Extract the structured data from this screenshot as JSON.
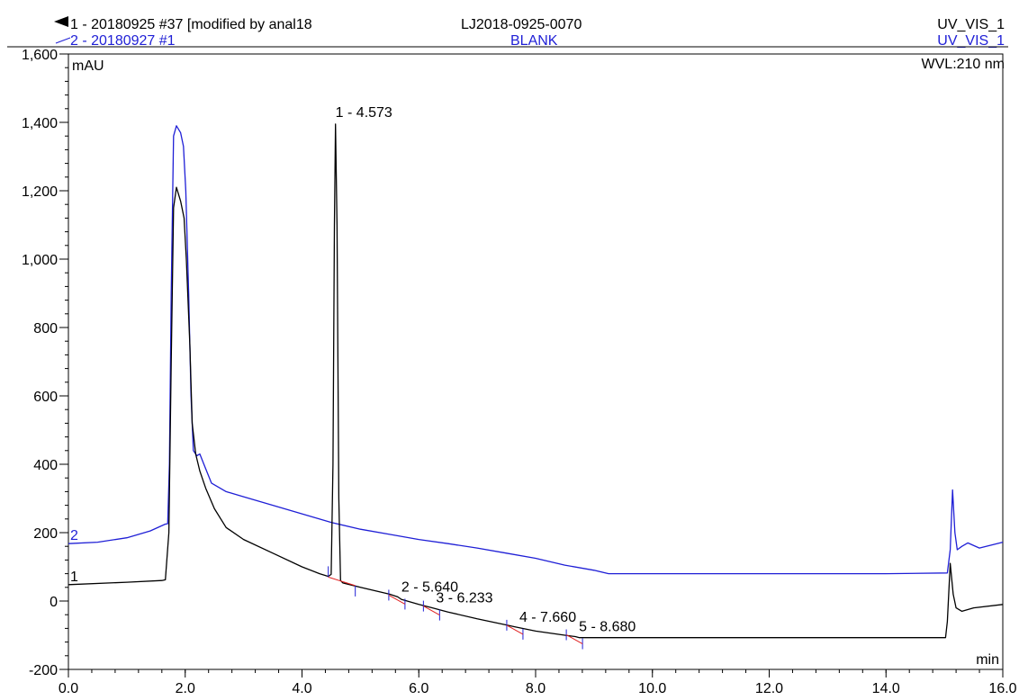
{
  "header": {
    "trace1_label": "1 - 20180925 #37 [modified by anal18",
    "trace2_label": "2 - 20180927 #1",
    "sample_name": "LJ2018-0925-0070",
    "blank_name": "BLANK",
    "channel1": "UV_VIS_1",
    "channel2": "UV_VIS_1",
    "wavelength": "WVL:210 nm"
  },
  "colors": {
    "trace1": "#000000",
    "trace2": "#1f1fd6",
    "integration": "#e02020"
  },
  "chart_data": {
    "type": "line",
    "title": "",
    "xlabel": "min",
    "ylabel": "mAU",
    "xlim": [
      0.0,
      16.0
    ],
    "ylim": [
      -200,
      1600
    ],
    "xticks": [
      "0.0",
      "2.0",
      "4.0",
      "6.0",
      "8.0",
      "10.0",
      "12.0",
      "14.0",
      "16.0"
    ],
    "yticks": [
      "-200",
      "0",
      "200",
      "400",
      "600",
      "800",
      "1,000",
      "1,200",
      "1,400",
      "1,600"
    ],
    "grid": false,
    "series": [
      {
        "name": "1",
        "color": "#000000",
        "points": [
          [
            0.0,
            48
          ],
          [
            1.0,
            55
          ],
          [
            1.6,
            60
          ],
          [
            1.66,
            62
          ],
          [
            1.72,
            200
          ],
          [
            1.76,
            700
          ],
          [
            1.8,
            1150
          ],
          [
            1.85,
            1210
          ],
          [
            1.92,
            1170
          ],
          [
            1.98,
            1120
          ],
          [
            2.02,
            1000
          ],
          [
            2.08,
            750
          ],
          [
            2.12,
            520
          ],
          [
            2.18,
            430
          ],
          [
            2.25,
            380
          ],
          [
            2.35,
            330
          ],
          [
            2.5,
            270
          ],
          [
            2.7,
            215
          ],
          [
            3.0,
            180
          ],
          [
            3.5,
            140
          ],
          [
            4.0,
            100
          ],
          [
            4.3,
            80
          ],
          [
            4.45,
            72
          ],
          [
            4.5,
            78
          ],
          [
            4.53,
            400
          ],
          [
            4.555,
            1100
          ],
          [
            4.573,
            1395
          ],
          [
            4.6,
            1100
          ],
          [
            4.63,
            300
          ],
          [
            4.66,
            60
          ],
          [
            4.7,
            53
          ],
          [
            5.0,
            40
          ],
          [
            5.5,
            20
          ],
          [
            5.64,
            12
          ],
          [
            5.7,
            5
          ],
          [
            6.0,
            -10
          ],
          [
            6.233,
            -20
          ],
          [
            6.5,
            -32
          ],
          [
            7.0,
            -52
          ],
          [
            7.5,
            -70
          ],
          [
            7.66,
            -76
          ],
          [
            8.0,
            -88
          ],
          [
            8.5,
            -100
          ],
          [
            8.68,
            -104
          ],
          [
            8.75,
            -107
          ],
          [
            9.0,
            -107
          ],
          [
            10.0,
            -107
          ],
          [
            12.0,
            -107
          ],
          [
            14.0,
            -107
          ],
          [
            15.02,
            -107
          ],
          [
            15.05,
            -60
          ],
          [
            15.1,
            110
          ],
          [
            15.15,
            20
          ],
          [
            15.2,
            -20
          ],
          [
            15.3,
            -30
          ],
          [
            15.5,
            -20
          ],
          [
            16.0,
            -10
          ]
        ]
      },
      {
        "name": "2",
        "color": "#1f1fd6",
        "points": [
          [
            0.0,
            168
          ],
          [
            0.5,
            172
          ],
          [
            1.0,
            185
          ],
          [
            1.4,
            205
          ],
          [
            1.66,
            225
          ],
          [
            1.7,
            226
          ],
          [
            1.73,
            400
          ],
          [
            1.76,
            900
          ],
          [
            1.8,
            1360
          ],
          [
            1.85,
            1390
          ],
          [
            1.92,
            1370
          ],
          [
            1.97,
            1330
          ],
          [
            2.01,
            1200
          ],
          [
            2.06,
            900
          ],
          [
            2.1,
            600
          ],
          [
            2.14,
            440
          ],
          [
            2.2,
            425
          ],
          [
            2.25,
            430
          ],
          [
            2.32,
            400
          ],
          [
            2.45,
            345
          ],
          [
            2.7,
            320
          ],
          [
            3.0,
            305
          ],
          [
            3.5,
            280
          ],
          [
            4.0,
            255
          ],
          [
            4.5,
            230
          ],
          [
            5.0,
            210
          ],
          [
            5.5,
            195
          ],
          [
            6.0,
            180
          ],
          [
            6.5,
            168
          ],
          [
            7.0,
            155
          ],
          [
            7.5,
            140
          ],
          [
            8.0,
            125
          ],
          [
            8.5,
            105
          ],
          [
            9.0,
            90
          ],
          [
            9.25,
            80
          ],
          [
            10.0,
            80
          ],
          [
            12.0,
            80
          ],
          [
            14.0,
            80
          ],
          [
            15.05,
            82
          ],
          [
            15.1,
            150
          ],
          [
            15.14,
            325
          ],
          [
            15.18,
            200
          ],
          [
            15.22,
            150
          ],
          [
            15.3,
            160
          ],
          [
            15.4,
            170
          ],
          [
            15.6,
            155
          ],
          [
            16.0,
            172
          ]
        ]
      }
    ],
    "peaks": [
      {
        "label": "1 - 4.573",
        "x": 4.573,
        "y": 1395
      },
      {
        "label": "2 - 5.640",
        "x": 5.64,
        "y": 12
      },
      {
        "label": "3 - 6.233",
        "x": 6.233,
        "y": -20
      },
      {
        "label": "4 - 7.660",
        "x": 7.66,
        "y": -76
      },
      {
        "label": "5 - 8.680",
        "x": 8.68,
        "y": -104
      }
    ],
    "trace_markers": [
      "1",
      "2"
    ]
  }
}
